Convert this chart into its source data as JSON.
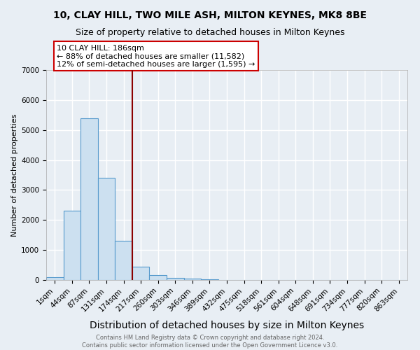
{
  "title": "10, CLAY HILL, TWO MILE ASH, MILTON KEYNES, MK8 8BE",
  "subtitle": "Size of property relative to detached houses in Milton Keynes",
  "xlabel": "Distribution of detached houses by size in Milton Keynes",
  "ylabel": "Number of detached properties",
  "bin_labels": [
    "1sqm",
    "44sqm",
    "87sqm",
    "131sqm",
    "174sqm",
    "217sqm",
    "260sqm",
    "303sqm",
    "346sqm",
    "389sqm",
    "432sqm",
    "475sqm",
    "518sqm",
    "561sqm",
    "604sqm",
    "648sqm",
    "691sqm",
    "734sqm",
    "777sqm",
    "820sqm",
    "863sqm"
  ],
  "bar_heights": [
    100,
    2300,
    5400,
    3400,
    1300,
    450,
    175,
    75,
    50,
    30,
    5,
    0,
    0,
    0,
    0,
    0,
    0,
    0,
    0,
    0,
    0
  ],
  "bar_color": "#cce0f0",
  "bar_edge_color": "#5599cc",
  "vline_color": "#8b0000",
  "annotation_text": "10 CLAY HILL: 186sqm\n← 88% of detached houses are smaller (11,582)\n12% of semi-detached houses are larger (1,595) →",
  "annotation_box_color": "white",
  "annotation_box_edge": "#cc0000",
  "ylim": [
    0,
    7000
  ],
  "yticks": [
    0,
    1000,
    2000,
    3000,
    4000,
    5000,
    6000,
    7000
  ],
  "title_fontsize": 10,
  "subtitle_fontsize": 9,
  "xlabel_fontsize": 10,
  "ylabel_fontsize": 8,
  "tick_fontsize": 7.5,
  "annotation_fontsize": 8,
  "footer_text": "Contains HM Land Registry data © Crown copyright and database right 2024.\nContains public sector information licensed under the Open Government Licence v3.0.",
  "background_color": "#e8eef4",
  "grid_color": "white",
  "vline_x_index": 4.5
}
